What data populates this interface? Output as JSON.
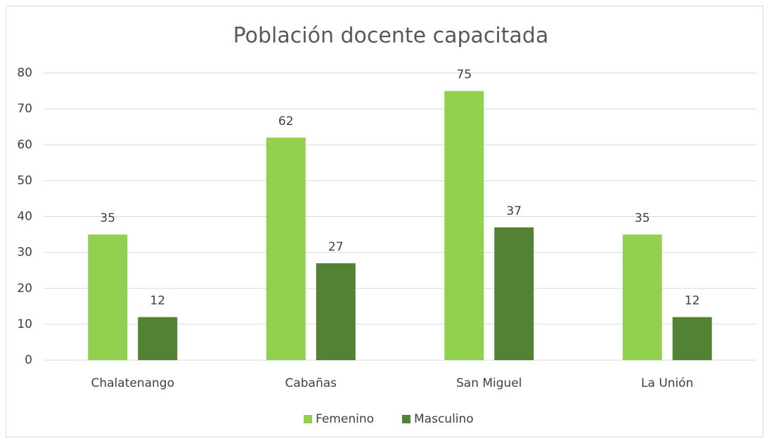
{
  "chart_data": {
    "type": "bar",
    "title": "Población docente capacitada",
    "categories": [
      "Chalatenango",
      "Cabañas",
      "San Miguel",
      "La Unión"
    ],
    "series": [
      {
        "name": "Femenino",
        "color": "#92d050",
        "values": [
          35,
          62,
          75,
          35
        ]
      },
      {
        "name": "Masculino",
        "color": "#548235",
        "values": [
          12,
          27,
          37,
          12
        ]
      }
    ],
    "ylim": [
      0,
      80
    ],
    "yticks": [
      0,
      10,
      20,
      30,
      40,
      50,
      60,
      70,
      80
    ],
    "grid": true,
    "legend": "bottom"
  }
}
